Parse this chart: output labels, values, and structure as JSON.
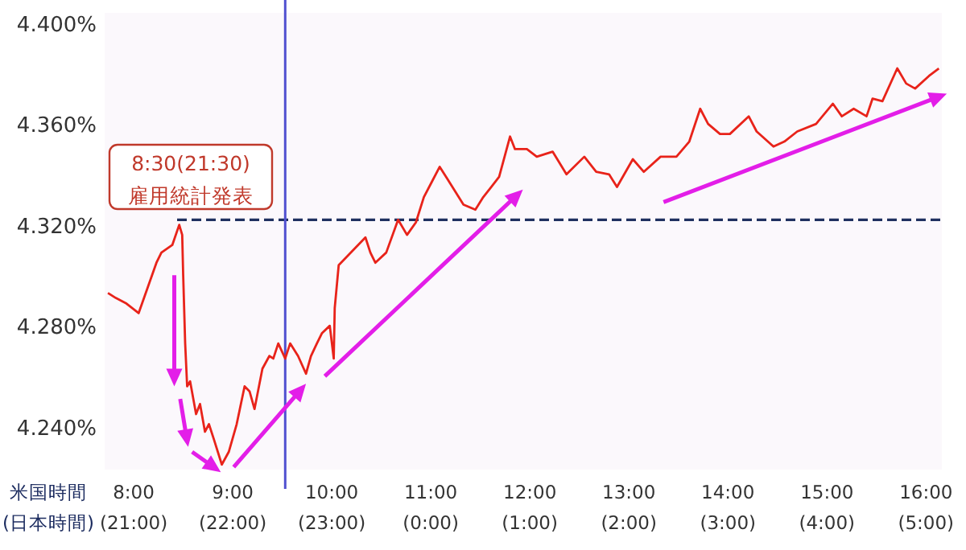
{
  "chart_data": {
    "type": "line",
    "xlabel": "米国時間",
    "annotations": [
      "8:30(21:30)\n雇用統計発表",
      "(日本時間)",
      "(21:00)",
      "(22:00)",
      "(23:00)",
      "(0:00)",
      "(1:00)",
      "(2:00)",
      "(3:00)",
      "(4:00)",
      "(5:00)"
    ],
    "x": [
      7.74,
      7.82,
      7.92,
      8.05,
      8.23,
      8.28,
      8.39,
      8.46,
      8.49,
      8.5,
      8.52,
      8.54,
      8.57,
      8.63,
      8.67,
      8.72,
      8.76,
      8.81,
      8.89,
      8.96,
      9.04,
      9.12,
      9.17,
      9.22,
      9.3,
      9.37,
      9.41,
      9.46,
      9.53,
      9.58,
      9.66,
      9.74,
      9.79,
      9.85,
      9.9,
      9.98,
      10.02,
      10.03,
      10.07,
      10.34,
      10.39,
      10.44,
      10.55,
      10.67,
      10.76,
      10.85,
      10.93,
      11.01,
      11.09,
      11.17,
      11.25,
      11.33,
      11.45,
      11.53,
      11.61,
      11.69,
      11.8,
      11.85,
      11.97,
      12.07,
      12.23,
      12.37,
      12.55,
      12.67,
      12.8,
      12.88,
      13.04,
      13.15,
      13.32,
      13.48,
      13.61,
      13.72,
      13.8,
      13.92,
      14.02,
      14.21,
      14.29,
      14.46,
      14.57,
      14.7,
      14.89,
      15.06,
      15.15,
      15.27,
      15.4,
      15.46,
      15.56,
      15.71,
      15.8,
      15.89,
      16.03,
      16.13
    ],
    "series": [
      {
        "color": "#e8231a",
        "values": [
          4.293,
          4.291,
          4.289,
          4.285,
          4.305,
          4.309,
          4.312,
          4.32,
          4.316,
          4.3,
          4.273,
          4.256,
          4.258,
          4.245,
          4.249,
          4.238,
          4.241,
          4.235,
          4.225,
          4.23,
          4.241,
          4.256,
          4.254,
          4.247,
          4.263,
          4.268,
          4.267,
          4.273,
          4.267,
          4.273,
          4.268,
          4.261,
          4.268,
          4.273,
          4.277,
          4.28,
          4.267,
          4.287,
          4.304,
          4.315,
          4.309,
          4.305,
          4.309,
          4.322,
          4.316,
          4.321,
          4.331,
          4.337,
          4.343,
          4.338,
          4.333,
          4.328,
          4.326,
          4.331,
          4.335,
          4.339,
          4.355,
          4.35,
          4.35,
          4.347,
          4.349,
          4.34,
          4.347,
          4.341,
          4.34,
          4.335,
          4.346,
          4.341,
          4.347,
          4.347,
          4.353,
          4.366,
          4.36,
          4.356,
          4.356,
          4.363,
          4.357,
          4.351,
          4.353,
          4.357,
          4.36,
          4.368,
          4.363,
          4.366,
          4.363,
          4.37,
          4.369,
          4.382,
          4.376,
          4.374,
          4.379,
          4.382
        ]
      }
    ],
    "xlim": [
      7.707,
      16.16
    ],
    "ylim": [
      4.223,
      4.404
    ],
    "xticks": [
      {
        "value": 8,
        "label": "8:00"
      },
      {
        "value": 9,
        "label": "9:00"
      },
      {
        "value": 10,
        "label": "10:00"
      },
      {
        "value": 11,
        "label": "11:00"
      },
      {
        "value": 12,
        "label": "12:00"
      },
      {
        "value": 13,
        "label": "13:00"
      },
      {
        "value": 14,
        "label": "14:00"
      },
      {
        "value": 15,
        "label": "15:00"
      },
      {
        "value": 16,
        "label": "16:00"
      }
    ],
    "yticks": [
      {
        "value": 4.24,
        "label": "4.240%"
      },
      {
        "value": 4.28,
        "label": "4.280%"
      },
      {
        "value": 4.32,
        "label": "4.320%"
      },
      {
        "value": 4.36,
        "label": "4.360%"
      },
      {
        "value": 4.4,
        "label": "4.400%"
      }
    ],
    "ref_lines": [
      {
        "axis": "y",
        "value": 4.322,
        "color": "#1f3060",
        "line_style": "dashed"
      },
      {
        "axis": "x",
        "value": 9.53,
        "color": "#5050d0",
        "line_style": "solid"
      }
    ]
  }
}
